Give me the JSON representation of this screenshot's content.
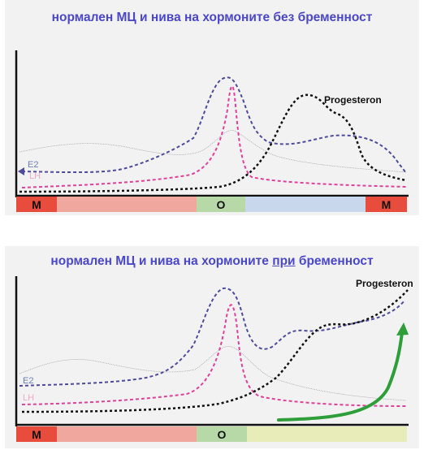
{
  "top": {
    "title": "нормален МЦ и нива на хормоните без бременност",
    "labels": {
      "e2": "E2",
      "lh": "LH",
      "progesterone": "Progesteron"
    },
    "phases": [
      "M",
      "",
      "O",
      "",
      "M"
    ]
  },
  "bottom": {
    "title_before": "нормален МЦ и нива на хормоните ",
    "title_pri": "при",
    "title_after": " бременност",
    "labels": {
      "e2": "E2",
      "lh": "LH",
      "progesterone": "Progesteron"
    },
    "phases": [
      "M",
      "",
      "O",
      ""
    ]
  },
  "colors": {
    "title": "#4a47c8",
    "e2": "#4d4b9c",
    "lh": "#e0409a",
    "progesterone": "#111111",
    "baseline": "#9a9a9a",
    "arrow": "#2e9e3a",
    "phase_m": "#e84c3d",
    "phase_follicular": "#f0a79d",
    "phase_ovulation": "#b7d9a8",
    "phase_luteal": "#c8d7ec",
    "phase_pregnancy": "#e7ecb8"
  }
}
